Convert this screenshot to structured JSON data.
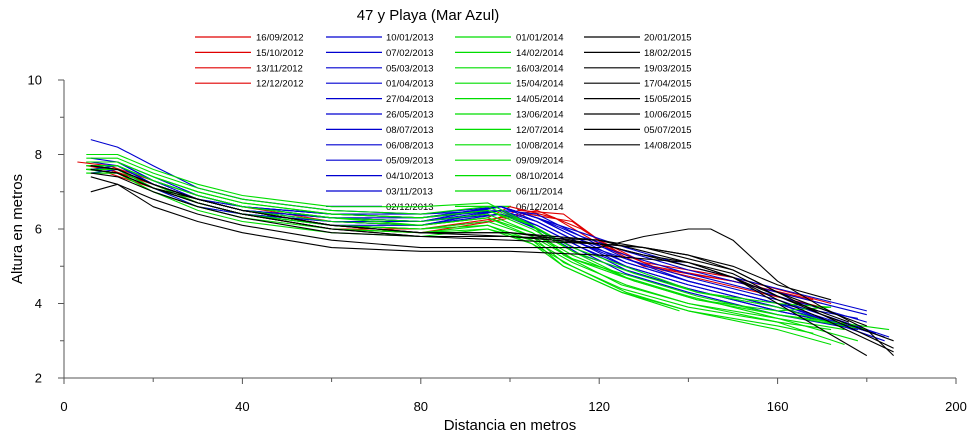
{
  "chart_data": {
    "type": "line",
    "title": "47 y Playa (Mar Azul)",
    "xlabel": "Distancia en metros",
    "ylabel": "Altura en metros",
    "xlim": [
      0,
      200
    ],
    "ylim": [
      2,
      10
    ],
    "xticks": [
      0,
      40,
      80,
      120,
      160,
      200
    ],
    "yticks": [
      2,
      4,
      6,
      8,
      10
    ],
    "grid": false,
    "legend_position": "top",
    "series": [
      {
        "name": "16/09/2012",
        "color": "#e00000",
        "x": [
          3,
          10,
          20,
          30,
          40,
          60,
          80,
          95,
          100,
          110,
          120,
          130,
          150,
          170
        ],
        "y": [
          7.8,
          7.7,
          7.3,
          6.9,
          6.6,
          6.2,
          6.1,
          6.3,
          6.6,
          6.3,
          5.6,
          5.0,
          4.6,
          4.0
        ]
      },
      {
        "name": "15/10/2012",
        "color": "#e00000",
        "x": [
          5,
          10,
          20,
          30,
          40,
          60,
          80,
          95,
          102,
          112,
          120,
          130,
          150,
          172
        ],
        "y": [
          7.7,
          7.6,
          7.2,
          6.8,
          6.5,
          6.1,
          6.0,
          6.2,
          6.5,
          6.4,
          5.7,
          5.1,
          4.7,
          4.0
        ]
      },
      {
        "name": "13/11/2012",
        "color": "#e00000",
        "x": [
          5,
          10,
          20,
          30,
          40,
          60,
          80,
          96,
          104,
          114,
          122,
          132,
          150,
          168
        ],
        "y": [
          7.6,
          7.6,
          7.2,
          6.7,
          6.4,
          6.0,
          5.9,
          6.2,
          6.4,
          6.2,
          5.5,
          5.0,
          4.6,
          4.1
        ]
      },
      {
        "name": "12/12/2012",
        "color": "#e00000",
        "x": [
          6,
          10,
          20,
          30,
          40,
          60,
          80,
          98,
          106,
          116,
          124,
          134,
          152,
          170
        ],
        "y": [
          7.5,
          7.5,
          7.1,
          6.7,
          6.4,
          6.0,
          6.0,
          6.3,
          6.5,
          6.0,
          5.4,
          4.9,
          4.4,
          3.9
        ]
      },
      {
        "name": "10/01/2013",
        "color": "#0000d0",
        "x": [
          6,
          12,
          20,
          30,
          40,
          60,
          80,
          98,
          106,
          116,
          126,
          140,
          160,
          185
        ],
        "y": [
          8.4,
          8.2,
          7.7,
          7.1,
          6.8,
          6.5,
          6.4,
          6.5,
          6.4,
          5.8,
          5.2,
          4.7,
          4.1,
          3.1
        ]
      },
      {
        "name": "07/02/2013",
        "color": "#0000d0",
        "x": [
          6,
          12,
          20,
          30,
          40,
          60,
          80,
          98,
          106,
          116,
          126,
          140,
          160,
          184
        ],
        "y": [
          7.8,
          7.8,
          7.4,
          6.9,
          6.6,
          6.3,
          6.2,
          6.6,
          6.3,
          5.7,
          5.1,
          4.6,
          4.0,
          3.0
        ]
      },
      {
        "name": "05/03/2013",
        "color": "#0000d0",
        "x": [
          6,
          12,
          20,
          30,
          40,
          60,
          80,
          98,
          106,
          116,
          126,
          140,
          160,
          182
        ],
        "y": [
          7.7,
          7.7,
          7.3,
          6.8,
          6.5,
          6.2,
          6.1,
          6.5,
          6.2,
          5.6,
          5.0,
          4.5,
          3.9,
          3.2
        ]
      },
      {
        "name": "01/04/2013",
        "color": "#0000d0",
        "x": [
          6,
          12,
          20,
          30,
          40,
          60,
          80,
          98,
          106,
          116,
          126,
          140,
          160,
          180
        ],
        "y": [
          7.6,
          7.7,
          7.2,
          6.8,
          6.5,
          6.3,
          6.2,
          6.4,
          6.1,
          5.5,
          4.9,
          4.4,
          3.8,
          3.3
        ]
      },
      {
        "name": "27/04/2013",
        "color": "#0000d0",
        "x": [
          6,
          12,
          20,
          30,
          40,
          60,
          80,
          98,
          106,
          116,
          126,
          140,
          160,
          180
        ],
        "y": [
          7.9,
          7.8,
          7.3,
          6.9,
          6.6,
          6.4,
          6.3,
          6.6,
          6.3,
          5.7,
          5.3,
          4.8,
          4.2,
          3.5
        ]
      },
      {
        "name": "26/05/2013",
        "color": "#0000d0",
        "x": [
          6,
          12,
          20,
          30,
          40,
          60,
          80,
          98,
          106,
          116,
          126,
          140,
          160,
          178
        ],
        "y": [
          7.6,
          7.6,
          7.1,
          6.7,
          6.4,
          6.2,
          6.1,
          6.5,
          6.0,
          5.4,
          4.8,
          4.3,
          3.7,
          3.3
        ]
      },
      {
        "name": "08/07/2013",
        "color": "#0000d0",
        "x": [
          6,
          12,
          20,
          30,
          40,
          60,
          80,
          98,
          106,
          116,
          126,
          140,
          160,
          178
        ],
        "y": [
          7.7,
          7.7,
          7.2,
          6.8,
          6.5,
          6.3,
          6.3,
          6.5,
          6.2,
          5.6,
          5.2,
          4.6,
          4.0,
          3.6
        ]
      },
      {
        "name": "06/08/2013",
        "color": "#0000d0",
        "x": [
          6,
          12,
          20,
          30,
          40,
          60,
          80,
          98,
          106,
          116,
          126,
          140,
          160,
          176
        ],
        "y": [
          7.5,
          7.6,
          7.1,
          6.6,
          6.4,
          6.1,
          6.1,
          6.4,
          6.0,
          5.3,
          4.9,
          4.4,
          3.8,
          3.4
        ]
      },
      {
        "name": "05/09/2013",
        "color": "#0000d0",
        "x": [
          6,
          12,
          20,
          30,
          40,
          60,
          80,
          98,
          106,
          116,
          126,
          140,
          160,
          180
        ],
        "y": [
          7.8,
          7.7,
          7.2,
          6.8,
          6.6,
          6.4,
          6.3,
          6.6,
          6.3,
          5.8,
          5.4,
          4.9,
          4.3,
          3.7
        ]
      },
      {
        "name": "04/10/2013",
        "color": "#0000d0",
        "x": [
          6,
          12,
          20,
          30,
          40,
          60,
          80,
          98,
          106,
          116,
          126,
          140,
          160,
          182
        ],
        "y": [
          7.6,
          7.6,
          7.1,
          6.7,
          6.4,
          6.2,
          6.2,
          6.5,
          6.1,
          5.5,
          5.0,
          4.5,
          3.9,
          3.2
        ]
      },
      {
        "name": "03/11/2013",
        "color": "#0000d0",
        "x": [
          6,
          12,
          20,
          30,
          40,
          60,
          80,
          98,
          106,
          116,
          126,
          140,
          160,
          184
        ],
        "y": [
          7.7,
          7.7,
          7.2,
          6.8,
          6.5,
          6.3,
          6.2,
          6.6,
          6.2,
          5.6,
          5.1,
          4.6,
          4.0,
          3.1
        ]
      },
      {
        "name": "02/12/2013",
        "color": "#0000d0",
        "x": [
          6,
          12,
          20,
          30,
          40,
          60,
          80,
          98,
          106,
          116,
          126,
          140,
          160,
          180
        ],
        "y": [
          7.8,
          7.8,
          7.3,
          6.9,
          6.6,
          6.4,
          6.4,
          6.6,
          6.3,
          5.9,
          5.5,
          5.0,
          4.4,
          3.8
        ]
      },
      {
        "name": "01/01/2014",
        "color": "#00dd00",
        "x": [
          5,
          12,
          20,
          30,
          40,
          60,
          80,
          95,
          105,
          112,
          125,
          140,
          160,
          175
        ],
        "y": [
          8.0,
          8.0,
          7.6,
          7.2,
          6.9,
          6.6,
          6.6,
          6.7,
          6.1,
          5.3,
          4.5,
          4.0,
          3.6,
          3.3
        ]
      },
      {
        "name": "14/02/2014",
        "color": "#00dd00",
        "x": [
          5,
          12,
          20,
          30,
          40,
          60,
          80,
          95,
          105,
          112,
          125,
          140,
          160,
          172
        ],
        "y": [
          7.6,
          7.6,
          7.1,
          6.8,
          6.5,
          6.2,
          6.1,
          6.3,
          5.8,
          5.1,
          4.4,
          3.9,
          3.5,
          3.3
        ]
      },
      {
        "name": "16/03/2014",
        "color": "#00dd00",
        "x": [
          5,
          12,
          20,
          30,
          40,
          60,
          80,
          95,
          105,
          112,
          125,
          140,
          160,
          168
        ],
        "y": [
          7.5,
          7.5,
          7.0,
          6.6,
          6.3,
          6.0,
          5.9,
          6.1,
          5.7,
          5.0,
          4.3,
          3.8,
          3.4,
          3.2
        ]
      },
      {
        "name": "15/04/2014",
        "color": "#00dd00",
        "x": [
          5,
          12,
          20,
          30,
          40,
          60,
          80,
          95,
          105,
          112,
          125,
          138
        ],
        "y": [
          7.6,
          7.5,
          7.1,
          6.7,
          6.4,
          6.0,
          5.9,
          6.0,
          5.6,
          5.0,
          4.3,
          3.8
        ]
      },
      {
        "name": "14/05/2014",
        "color": "#00dd00",
        "x": [
          5,
          12,
          20,
          30,
          40,
          60,
          80,
          95,
          105,
          114,
          126,
          140,
          160,
          178
        ],
        "y": [
          7.8,
          7.8,
          7.4,
          7.0,
          6.7,
          6.4,
          6.3,
          6.5,
          6.0,
          5.4,
          4.7,
          4.2,
          3.6,
          3.0
        ]
      },
      {
        "name": "13/06/2014",
        "color": "#00dd00",
        "x": [
          5,
          12,
          20,
          30,
          40,
          60,
          80,
          95,
          105,
          114,
          126,
          140,
          160,
          175
        ],
        "y": [
          7.5,
          7.5,
          7.0,
          6.5,
          6.2,
          5.9,
          5.8,
          6.0,
          5.7,
          5.1,
          4.5,
          4.0,
          3.5,
          2.9
        ]
      },
      {
        "name": "12/07/2014",
        "color": "#00dd00",
        "x": [
          5,
          12,
          20,
          30,
          40,
          60,
          80,
          95,
          105,
          114,
          126,
          140,
          160,
          172
        ],
        "y": [
          7.6,
          7.6,
          7.2,
          6.7,
          6.4,
          6.1,
          6.0,
          6.1,
          5.6,
          5.0,
          4.3,
          3.8,
          3.3,
          2.9
        ]
      },
      {
        "name": "10/08/2014",
        "color": "#00dd00",
        "x": [
          5,
          12,
          20,
          30,
          40,
          60,
          80,
          95,
          105,
          114,
          128,
          142,
          160,
          180
        ],
        "y": [
          7.7,
          7.7,
          7.3,
          6.9,
          6.6,
          6.3,
          6.2,
          6.4,
          5.9,
          5.3,
          4.6,
          4.1,
          3.7,
          3.3
        ]
      },
      {
        "name": "09/09/2014",
        "color": "#00dd00",
        "x": [
          5,
          12,
          20,
          30,
          40,
          60,
          80,
          95,
          105,
          114,
          128,
          142,
          160,
          172
        ],
        "y": [
          7.6,
          7.6,
          7.1,
          6.7,
          6.4,
          6.1,
          6.0,
          6.2,
          5.8,
          5.2,
          4.6,
          4.1,
          3.8,
          3.9
        ]
      },
      {
        "name": "08/10/2014",
        "color": "#00dd00",
        "x": [
          5,
          12,
          20,
          30,
          40,
          60,
          80,
          95,
          105,
          114,
          128,
          142,
          160,
          174
        ],
        "y": [
          7.8,
          7.8,
          7.4,
          7.0,
          6.7,
          6.4,
          6.3,
          6.5,
          6.1,
          5.4,
          4.8,
          4.3,
          3.9,
          3.4
        ]
      },
      {
        "name": "06/11/2014",
        "color": "#00dd00",
        "x": [
          5,
          12,
          20,
          30,
          40,
          60,
          80,
          95,
          105,
          114,
          128,
          142,
          160,
          185
        ],
        "y": [
          7.7,
          7.7,
          7.3,
          6.9,
          6.6,
          6.3,
          6.1,
          6.3,
          5.9,
          5.2,
          4.7,
          4.2,
          3.7,
          3.3
        ]
      },
      {
        "name": "06/12/2014",
        "color": "#00dd00",
        "x": [
          5,
          12,
          20,
          30,
          40,
          60,
          80,
          95,
          105,
          114,
          128,
          142,
          160,
          172
        ],
        "y": [
          7.9,
          7.9,
          7.5,
          7.1,
          6.8,
          6.5,
          6.4,
          6.6,
          6.1,
          5.5,
          4.9,
          4.3,
          4.0,
          3.9
        ]
      },
      {
        "name": "20/01/2015",
        "color": "#000000",
        "x": [
          6,
          12,
          20,
          30,
          40,
          60,
          80,
          100,
          120,
          130,
          140,
          145,
          150,
          160,
          170,
          180,
          186
        ],
        "y": [
          7.4,
          7.2,
          6.8,
          6.4,
          6.1,
          5.7,
          5.5,
          5.5,
          5.5,
          5.8,
          6.0,
          6.0,
          5.7,
          4.6,
          3.9,
          3.3,
          2.6
        ]
      },
      {
        "name": "18/02/2015",
        "color": "#000000",
        "x": [
          6,
          12,
          20,
          30,
          40,
          60,
          80,
          100,
          120,
          130,
          140,
          150,
          160,
          170,
          180
        ],
        "y": [
          7.0,
          7.2,
          6.6,
          6.2,
          5.9,
          5.5,
          5.4,
          5.4,
          5.3,
          5.2,
          5.1,
          4.7,
          4.0,
          3.3,
          2.6
        ]
      },
      {
        "name": "19/03/2015",
        "color": "#000000",
        "x": [
          6,
          12,
          20,
          30,
          40,
          60,
          80,
          100,
          120,
          130,
          140,
          150,
          160,
          170,
          186
        ],
        "y": [
          7.6,
          7.5,
          7.1,
          6.7,
          6.4,
          6.0,
          5.8,
          5.8,
          5.7,
          5.4,
          5.1,
          4.8,
          4.2,
          3.7,
          2.8
        ]
      },
      {
        "name": "17/04/2015",
        "color": "#000000",
        "x": [
          6,
          12,
          20,
          30,
          40,
          60,
          80,
          100,
          120,
          130,
          140,
          150,
          160,
          170,
          186
        ],
        "y": [
          7.5,
          7.4,
          7.0,
          6.6,
          6.3,
          5.9,
          5.8,
          5.8,
          5.6,
          5.3,
          5.0,
          4.7,
          4.1,
          3.6,
          2.7
        ]
      },
      {
        "name": "15/05/2015",
        "color": "#000000",
        "x": [
          6,
          12,
          20,
          30,
          40,
          60,
          80,
          100,
          120,
          130,
          140,
          150,
          160,
          170,
          186
        ],
        "y": [
          7.6,
          7.5,
          7.1,
          6.8,
          6.5,
          6.1,
          5.9,
          5.9,
          5.7,
          5.5,
          5.2,
          4.9,
          4.3,
          3.7,
          3.0
        ]
      },
      {
        "name": "10/06/2015",
        "color": "#000000",
        "x": [
          6,
          12,
          20,
          30,
          40,
          60,
          80,
          100,
          120,
          130,
          140,
          150,
          160,
          176
        ],
        "y": [
          7.7,
          7.6,
          7.2,
          6.8,
          6.5,
          6.1,
          5.9,
          5.9,
          5.6,
          5.3,
          5.1,
          4.7,
          4.2,
          3.5
        ]
      },
      {
        "name": "05/07/2015",
        "color": "#000000",
        "x": [
          6,
          12,
          20,
          30,
          40,
          60,
          80,
          100,
          120,
          130,
          140,
          150,
          160,
          180
        ],
        "y": [
          7.6,
          7.5,
          7.1,
          6.7,
          6.4,
          6.0,
          5.8,
          5.7,
          5.6,
          5.5,
          5.3,
          4.9,
          4.3,
          3.4
        ]
      },
      {
        "name": "14/08/2015",
        "color": "#000000",
        "x": [
          6,
          12,
          20,
          30,
          40,
          60,
          80,
          100,
          120,
          130,
          140,
          150,
          160,
          172
        ],
        "y": [
          7.7,
          7.6,
          7.2,
          6.8,
          6.5,
          6.1,
          5.9,
          5.8,
          5.6,
          5.5,
          5.3,
          5.0,
          4.5,
          4.1
        ]
      }
    ]
  }
}
